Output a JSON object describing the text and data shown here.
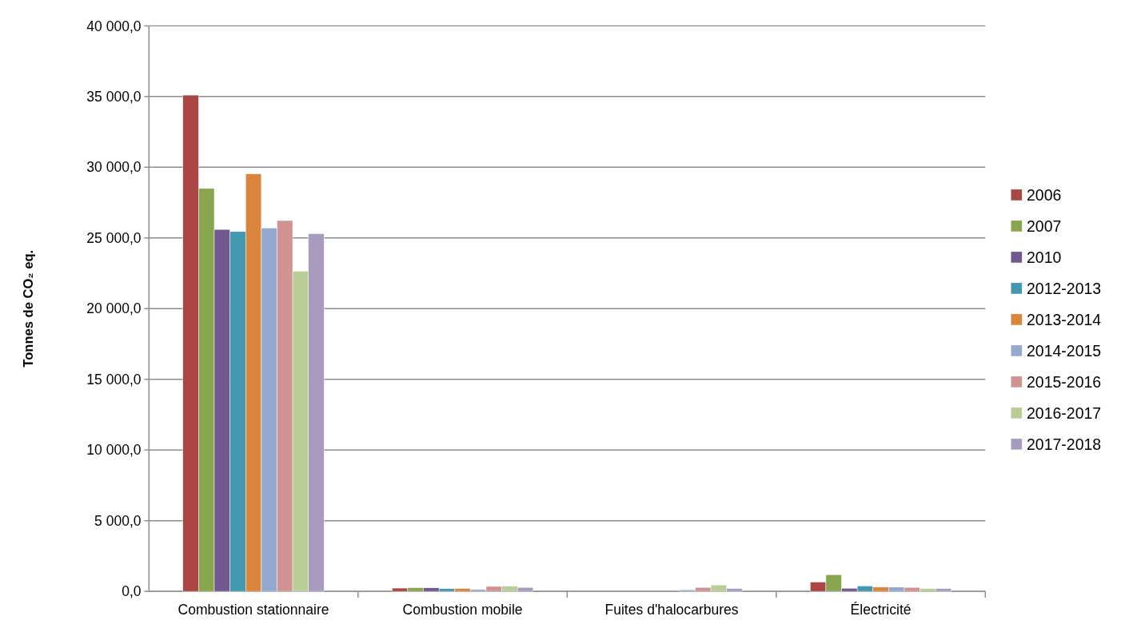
{
  "chart_data": {
    "type": "bar",
    "ylabel": "Tonnes de CO₂ eq.",
    "categories": [
      "Combustion stationnaire",
      "Combustion mobile",
      "Fuites d'halocarbures",
      "Électricité"
    ],
    "series": [
      {
        "name": "2006",
        "color": "#aa4643",
        "values": [
          35100,
          230,
          0,
          660
        ]
      },
      {
        "name": "2007",
        "color": "#89a54e",
        "values": [
          28500,
          260,
          0,
          1180
        ]
      },
      {
        "name": "2010",
        "color": "#71588f",
        "values": [
          25600,
          250,
          0,
          220
        ]
      },
      {
        "name": "2012-2013",
        "color": "#4198af",
        "values": [
          25450,
          190,
          0,
          380
        ]
      },
      {
        "name": "2013-2014",
        "color": "#db843d",
        "values": [
          29530,
          200,
          0,
          300
        ]
      },
      {
        "name": "2014-2015",
        "color": "#93a9cf",
        "values": [
          25700,
          130,
          110,
          300
        ]
      },
      {
        "name": "2015-2016",
        "color": "#d19392",
        "values": [
          26230,
          350,
          280,
          280
        ]
      },
      {
        "name": "2016-2017",
        "color": "#b9cd96",
        "values": [
          22650,
          370,
          450,
          200
        ]
      },
      {
        "name": "2017-2018",
        "color": "#a99bbd",
        "values": [
          25300,
          280,
          200,
          200
        ]
      }
    ],
    "ylim": [
      0,
      40000
    ],
    "yticks": [
      {
        "value": 0,
        "label": "0,0"
      },
      {
        "value": 5000,
        "label": "5 000,0"
      },
      {
        "value": 10000,
        "label": "10 000,0"
      },
      {
        "value": 15000,
        "label": "15 000,0"
      },
      {
        "value": 20000,
        "label": "20 000,0"
      },
      {
        "value": 25000,
        "label": "25 000,0"
      },
      {
        "value": 30000,
        "label": "30 000,0"
      },
      {
        "value": 35000,
        "label": "35 000,0"
      },
      {
        "value": 40000,
        "label": "40 000,0"
      }
    ],
    "grid": "y",
    "legend": "right"
  }
}
